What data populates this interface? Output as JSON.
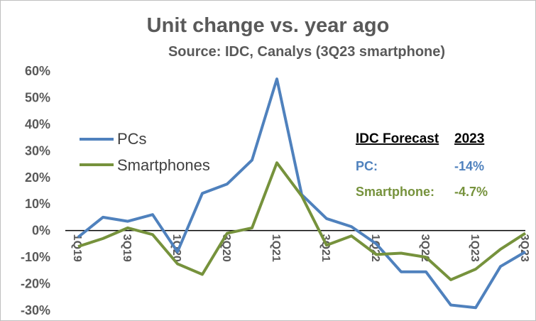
{
  "title": "Unit change vs. year ago",
  "subtitle": "Source: IDC, Canalys (3Q23 smartphone)",
  "colors": {
    "pcs": "#4f81bd",
    "smartphones": "#76923c",
    "text": "#595959"
  },
  "forecast": {
    "heading": "IDC Forecast",
    "year": "2023",
    "rows": [
      {
        "label": "PC:",
        "value": "-14%"
      },
      {
        "label": "Smartphone:",
        "value": "-4.7%"
      }
    ]
  },
  "chart_data": {
    "type": "line",
    "x": [
      "1Q19",
      "2Q19",
      "3Q19",
      "4Q19",
      "1Q20",
      "2Q20",
      "3Q20",
      "4Q20",
      "1Q21",
      "2Q21",
      "3Q21",
      "4Q21",
      "1Q22",
      "2Q22",
      "3Q22",
      "4Q22",
      "1Q23",
      "2Q23",
      "3Q23"
    ],
    "xtick_labels": [
      "1Q19",
      "3Q19",
      "1Q20",
      "3Q20",
      "1Q21",
      "3Q21",
      "1Q22",
      "3Q22",
      "1Q23",
      "3Q23"
    ],
    "ylim": [
      -30,
      60
    ],
    "yticks": [
      -30,
      -20,
      -10,
      0,
      10,
      20,
      30,
      40,
      50,
      60
    ],
    "ytick_labels": [
      "-30%",
      "-20%",
      "-10%",
      "0%",
      "10%",
      "20%",
      "30%",
      "40%",
      "50%",
      "60%"
    ],
    "series": [
      {
        "name": "PCs",
        "values": [
          -2.5,
          5,
          3.5,
          6,
          -8,
          14,
          17.5,
          26.5,
          57,
          13.5,
          4.5,
          1.5,
          -5,
          -15.5,
          -15.5,
          -28,
          -29,
          -13.5,
          -8
        ]
      },
      {
        "name": "Smartphones",
        "values": [
          -6,
          -3,
          1,
          -1.5,
          -12.5,
          -16.5,
          -1,
          1,
          25.5,
          13,
          -5.5,
          -2,
          -9,
          -8.5,
          -10,
          -18.5,
          -14.5,
          -7,
          -1
        ]
      }
    ],
    "legend": "upper-left",
    "grid": false
  }
}
